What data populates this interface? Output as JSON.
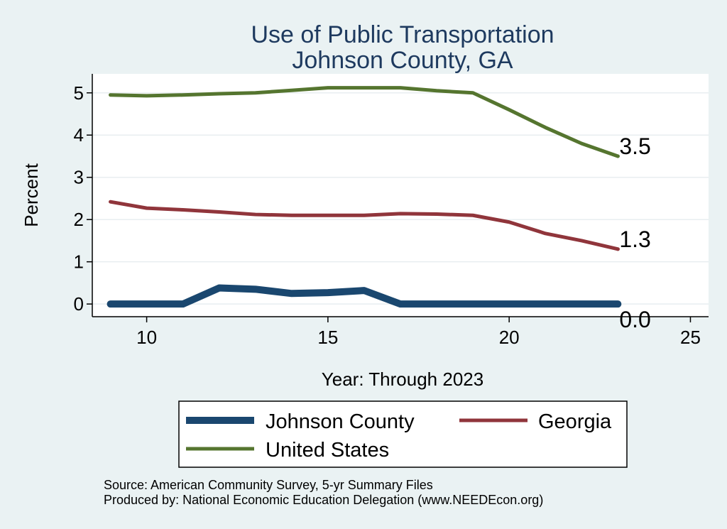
{
  "chart_data": {
    "type": "line",
    "title": "Use of Public Transportation",
    "subtitle": "Johnson County, GA",
    "xlabel": "Year: Through 2023",
    "ylabel": "Percent",
    "xlim": [
      8.5,
      25.5
    ],
    "ylim": [
      -0.3,
      5.45
    ],
    "xticks": [
      10,
      15,
      20,
      25
    ],
    "yticks": [
      0,
      1,
      2,
      3,
      4,
      5
    ],
    "grid": true,
    "legend_position": "bottom",
    "x": [
      9,
      10,
      11,
      12,
      13,
      14,
      15,
      16,
      17,
      18,
      19,
      20,
      21,
      22,
      23
    ],
    "series": [
      {
        "name": "Johnson County",
        "color": "#1a476f",
        "width": 10,
        "values": [
          0,
          0,
          0,
          0.38,
          0.35,
          0.25,
          0.27,
          0.32,
          0,
          0,
          0,
          0,
          0,
          0,
          0
        ],
        "end_label": "0.0"
      },
      {
        "name": "Georgia",
        "color": "#90353b",
        "width": 5,
        "values": [
          2.42,
          2.27,
          2.23,
          2.18,
          2.12,
          2.1,
          2.1,
          2.1,
          2.14,
          2.13,
          2.1,
          1.94,
          1.67,
          1.5,
          1.3
        ],
        "end_label": "1.3"
      },
      {
        "name": "United States",
        "color": "#55752f",
        "width": 5,
        "values": [
          4.95,
          4.93,
          4.95,
          4.98,
          5.0,
          5.06,
          5.12,
          5.12,
          5.12,
          5.05,
          5.0,
          4.6,
          4.18,
          3.8,
          3.5
        ],
        "end_label": "3.5"
      }
    ]
  },
  "notes": {
    "source": "Source: American Community Survey, 5-yr Summary Files",
    "produced": "Produced by: National Economic Education Delegation (www.NEEDEcon.org)"
  }
}
